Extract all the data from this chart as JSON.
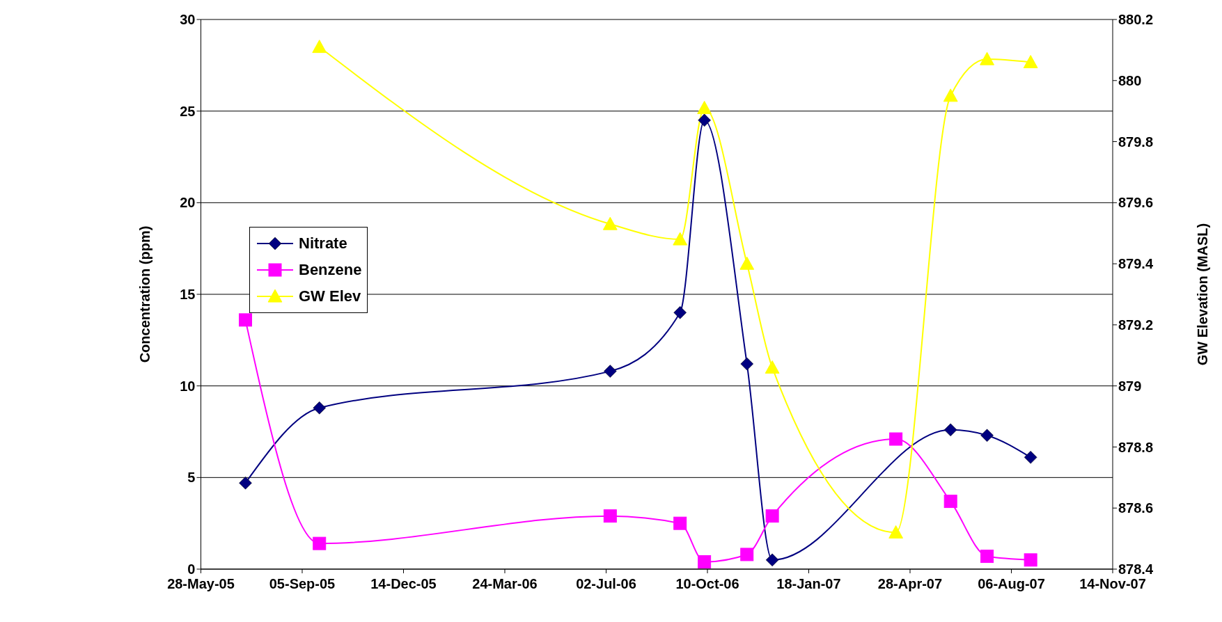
{
  "chart_data": {
    "type": "line",
    "ylabel": "Concentration (ppm)",
    "y2label": "GW Elevation (MASL)",
    "x": [
      "2005-07-11",
      "2005-09-22",
      "2006-07-06",
      "2006-09-13",
      "2006-10-07",
      "2006-11-18",
      "2006-12-13",
      "2007-04-14",
      "2007-06-07",
      "2007-07-13",
      "2007-08-25"
    ],
    "series": [
      {
        "name": "Nitrate",
        "color": "#000080",
        "marker": "diamond",
        "values": [
          4.7,
          8.8,
          10.8,
          14.0,
          24.5,
          11.2,
          0.5,
          null,
          7.6,
          7.3,
          6.1
        ]
      },
      {
        "name": "Benzene",
        "color": "#ff00ff",
        "marker": "square",
        "values": [
          13.6,
          1.4,
          2.9,
          2.5,
          0.4,
          0.8,
          2.9,
          7.1,
          3.7,
          0.7,
          0.5
        ]
      },
      {
        "name": "GW Elev",
        "color": "#ffff00",
        "marker": "triangle",
        "axis": "y2",
        "values": [
          null,
          880.11,
          879.53,
          879.48,
          879.91,
          879.4,
          879.06,
          878.52,
          879.95,
          880.07,
          880.06
        ]
      }
    ],
    "xlim": [
      "2005-05-28",
      "2007-11-14"
    ],
    "xticks": [
      {
        "value": "2005-05-28",
        "label": "28-May-05"
      },
      {
        "value": "2005-09-05",
        "label": "05-Sep-05"
      },
      {
        "value": "2005-12-14",
        "label": "14-Dec-05"
      },
      {
        "value": "2006-03-24",
        "label": "24-Mar-06"
      },
      {
        "value": "2006-07-02",
        "label": "02-Jul-06"
      },
      {
        "value": "2006-10-10",
        "label": "10-Oct-06"
      },
      {
        "value": "2007-01-18",
        "label": "18-Jan-07"
      },
      {
        "value": "2007-04-28",
        "label": "28-Apr-07"
      },
      {
        "value": "2007-08-06",
        "label": "06-Aug-07"
      },
      {
        "value": "2007-11-14",
        "label": "14-Nov-07"
      }
    ],
    "ylim": [
      0,
      30
    ],
    "yticks": [
      0,
      5,
      10,
      15,
      20,
      25,
      30
    ],
    "y2lim": [
      878.4,
      880.2
    ],
    "y2ticks": [
      878.4,
      878.6,
      878.8,
      879,
      879.2,
      879.4,
      879.6,
      879.8,
      880,
      880.2
    ],
    "grid": "y",
    "legend": "left"
  }
}
